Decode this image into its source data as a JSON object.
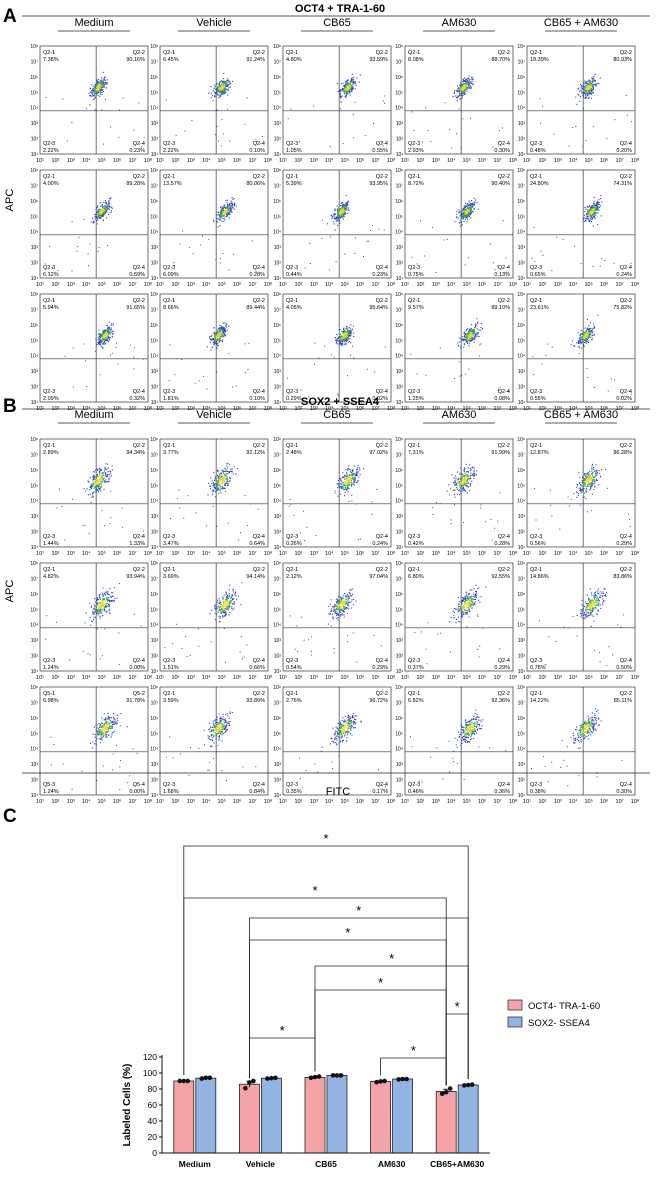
{
  "panel_a": {
    "letter": "A",
    "title": "OCT4 + TRA-1-60",
    "columns": [
      "Medium",
      "Vehicle",
      "CB65",
      "AM630",
      "CB65 + AM630"
    ],
    "quad_labels": [
      "Q2-1",
      "Q2-2",
      "Q2-3",
      "Q2-4"
    ],
    "rows": [
      [
        [
          "7.38%",
          "90.16%",
          "2.22%",
          "0.23%"
        ],
        [
          "6.45%",
          "91.24%",
          "2.22%",
          "0.10%"
        ],
        [
          "4.80%",
          "93.59%",
          "1.05%",
          "0.55%"
        ],
        [
          "8.08%",
          "88.70%",
          "2.93%",
          "0.30%"
        ],
        [
          "18.39%",
          "80.93%",
          "0.48%",
          "0.20%"
        ]
      ],
      [
        [
          "4.00%",
          "89.28%",
          "6.12%",
          "0.59%"
        ],
        [
          "13.57%",
          "80.06%",
          "6.09%",
          "0.28%"
        ],
        [
          "5.39%",
          "93.95%",
          "0.44%",
          "0.23%"
        ],
        [
          "8.72%",
          "90.40%",
          "0.75%",
          "0.13%"
        ],
        [
          "24.80%",
          "74.31%",
          "0.65%",
          "0.24%"
        ]
      ],
      [
        [
          "5.94%",
          "91.65%",
          "2.09%",
          "0.32%"
        ],
        [
          "8.66%",
          "89.44%",
          "1.81%",
          "0.10%"
        ],
        [
          "4.05%",
          "95.64%",
          "0.29%",
          "0.02%"
        ],
        [
          "9.57%",
          "89.10%",
          "1.25%",
          "0.08%"
        ],
        [
          "23.61%",
          "75.82%",
          "0.55%",
          "0.02%"
        ]
      ]
    ]
  },
  "panel_b": {
    "letter": "B",
    "title": "SOX2 + SSEA4",
    "columns": [
      "Medium",
      "Vehicle",
      "CB65",
      "AM630",
      "CB65 + AM630"
    ],
    "quad_labels": [
      "Q2-1",
      "Q2-2",
      "Q2-3",
      "Q2-4"
    ],
    "quad_labels_alt": [
      "Q5-1",
      "Q5-2",
      "Q5-3",
      "Q5-4"
    ],
    "rows": [
      [
        [
          "2.89%",
          "94.34%",
          "1.44%",
          "1.33%"
        ],
        [
          "3.77%",
          "92.12%",
          "3.47%",
          "0.64%"
        ],
        [
          "2.48%",
          "97.02%",
          "0.26%",
          "0.24%"
        ],
        [
          "7.31%",
          "91.99%",
          "0.42%",
          "0.28%"
        ],
        [
          "12.87%",
          "86.28%",
          "0.56%",
          "0.29%"
        ]
      ],
      [
        [
          "4.82%",
          "93.94%",
          "1.24%",
          "0.00%"
        ],
        [
          "3.69%",
          "94.14%",
          "1.51%",
          "0.66%"
        ],
        [
          "2.12%",
          "97.04%",
          "0.54%",
          "0.29%"
        ],
        [
          "6.80%",
          "92.55%",
          "0.37%",
          "0.29%"
        ],
        [
          "14.86%",
          "83.86%",
          "0.78%",
          "0.50%"
        ]
      ],
      [
        [
          "6.98%",
          "91.78%",
          "1.24%",
          "0.00%"
        ],
        [
          "3.59%",
          "93.89%",
          "1.68%",
          "0.84%"
        ],
        [
          "2.76%",
          "96.72%",
          "0.35%",
          "0.17%"
        ],
        [
          "6.82%",
          "92.36%",
          "0.46%",
          "0.36%"
        ],
        [
          "14.22%",
          "85.11%",
          "0.38%",
          "0.30%"
        ]
      ]
    ]
  },
  "y_axis_label": "APC",
  "x_axis_label": "FITC",
  "log_ticks": [
    "10¹",
    "10²",
    "10³",
    "10⁴",
    "10⁵",
    "10⁶",
    "10⁷",
    "10⁸"
  ],
  "colors": {
    "oct4": "#f4a3a8",
    "sox2": "#92b4e3",
    "scatter_outer": "#3040c0",
    "scatter_mid": "#2fa84f",
    "scatter_core": "#f0d020"
  },
  "panel_c": {
    "letter": "C",
    "star": "*",
    "chart_data": {
      "type": "bar",
      "categories": [
        "Medium",
        "Vehicle",
        "CB65",
        "AM630",
        "CB65+AM630"
      ],
      "series": [
        {
          "name": "OCT4- TRA-1-60",
          "values": [
            90,
            86,
            94.5,
            89.5,
            77
          ],
          "points": [
            [
              90,
              90,
              90
            ],
            [
              81,
              88,
              90
            ],
            [
              94,
              95,
              95.5
            ],
            [
              88.5,
              89.5,
              90
            ],
            [
              74,
              76,
              80.5
            ]
          ]
        },
        {
          "name": "SOX2- SSEA4",
          "values": [
            93.5,
            93.5,
            97,
            92.5,
            85
          ],
          "points": [
            [
              93,
              94,
              94
            ],
            [
              93,
              93.5,
              94
            ],
            [
              97,
              97,
              97
            ],
            [
              92,
              92.5,
              92.5
            ],
            [
              84.5,
              85,
              85.5
            ]
          ]
        }
      ],
      "ylabel": "Labeled Cells (%)",
      "yticks": [
        0,
        20,
        40,
        60,
        80,
        100,
        120
      ],
      "ylim": [
        0,
        120
      ],
      "legend": "right",
      "significance": [
        {
          "from_group": 0,
          "from_series": 0,
          "to_group": 4,
          "to_series": 1,
          "label": "*"
        },
        {
          "from_group": 0,
          "from_series": 0,
          "to_group": 4,
          "to_series": 0,
          "label": "*"
        },
        {
          "from_group": 1,
          "from_series": 0,
          "to_group": 4,
          "to_series": 1,
          "label": "*"
        },
        {
          "from_group": 1,
          "from_series": 0,
          "to_group": 4,
          "to_series": 0,
          "label": "*"
        },
        {
          "from_group": 2,
          "from_series": 0,
          "to_group": 4,
          "to_series": 1,
          "label": "*"
        },
        {
          "from_group": 2,
          "from_series": 0,
          "to_group": 4,
          "to_series": 0,
          "label": "*"
        },
        {
          "from_group": 4,
          "from_series": 0,
          "to_group": 4,
          "to_series": 1,
          "label": "*"
        },
        {
          "from_group": 1,
          "from_series": 0,
          "to_group": 2,
          "to_series": 0,
          "label": "*"
        },
        {
          "from_group": 3,
          "from_series": 0,
          "to_group": 4,
          "to_series": 0,
          "label": "*"
        }
      ]
    }
  }
}
